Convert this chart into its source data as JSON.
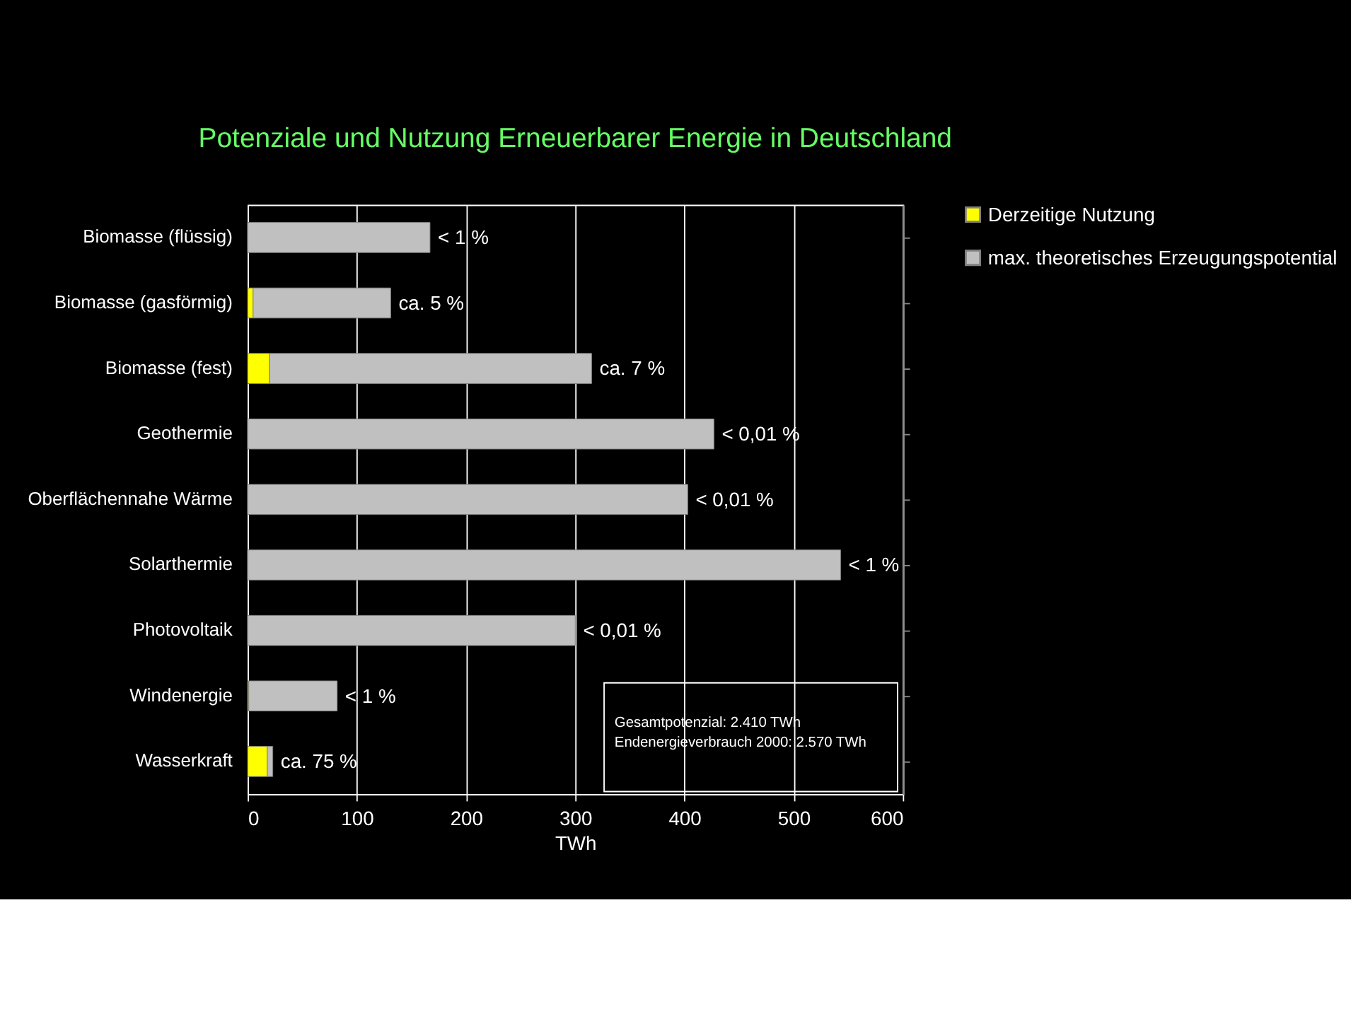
{
  "chart_data": {
    "type": "bar",
    "orientation": "horizontal",
    "stacked": true,
    "title": "Potenziale und Nutzung Erneuerbarer Energie in Deutschland",
    "xlabel": "TWh",
    "categories": [
      "Biomasse (flüssig)",
      "Biomasse (gasförmig)",
      "Biomasse (fest)",
      "Geothermie",
      "Oberflächennahe Wärme",
      "Solarthermie",
      "Photovoltaik",
      "Windenergie",
      "Wasserkraft"
    ],
    "series": [
      {
        "name": "Derzeitige Nutzung",
        "color": "#ffff00",
        "values": [
          0,
          5,
          20,
          0,
          0,
          0,
          0,
          1,
          18
        ]
      },
      {
        "name": "max. theoretisches Erzeugungspotential",
        "color": "#c0c0c0",
        "values": [
          167,
          126,
          295,
          427,
          403,
          543,
          300,
          81,
          5
        ]
      }
    ],
    "xlim": [
      0,
      600
    ],
    "xticks": [
      0,
      100,
      200,
      300,
      400,
      500,
      600
    ],
    "grid": "x",
    "legend": "right",
    "annotations": [
      {
        "text": "< 1 %",
        "x": 167,
        "y": "Biomasse (flüssig)"
      },
      {
        "text": "ca. 5 %",
        "x": 131,
        "y": "Biomasse (gasförmig)"
      },
      {
        "text": "ca. 7 %",
        "x": 315,
        "y": "Biomasse (fest)"
      },
      {
        "text": "< 0,01 %",
        "x": 427,
        "y": "Geothermie"
      },
      {
        "text": "< 0,01 %",
        "x": 403,
        "y": "Oberflächennahe Wärme"
      },
      {
        "text": "< 1 %",
        "x": 543,
        "y": "Solarthermie"
      },
      {
        "text": "< 0,01 %",
        "x": 300,
        "y": "Photovoltaik"
      },
      {
        "text": "< 1 %",
        "x": 82,
        "y": "Windenergie"
      },
      {
        "text": "ca. 75 %",
        "x": 23,
        "y": "Wasserkraft"
      },
      "Gesamtpotenzial:   2.410 TWh",
      "Endenergieverbrauch 2000:   2.570 TWh"
    ]
  }
}
